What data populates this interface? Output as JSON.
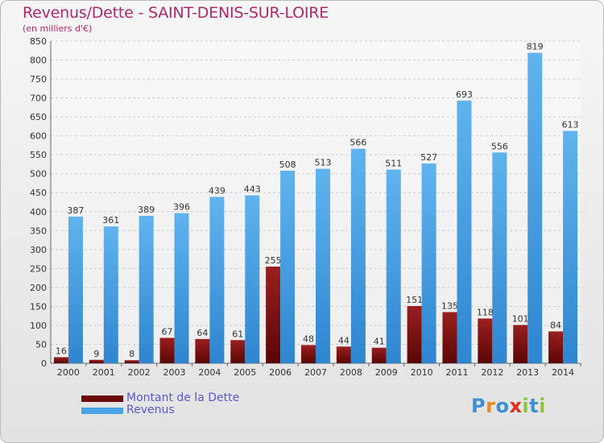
{
  "header": {
    "title": "Revenus/Dette - SAINT-DENIS-SUR-LOIRE",
    "subtitle": "(en milliers d'€)"
  },
  "chart_data": {
    "type": "bar",
    "categories": [
      "2000",
      "2001",
      "2002",
      "2003",
      "2004",
      "2005",
      "2006",
      "2007",
      "2008",
      "2009",
      "2010",
      "2011",
      "2012",
      "2013",
      "2014"
    ],
    "series": [
      {
        "name": "Montant de la Dette",
        "color": "#7a1010",
        "values": [
          16,
          9,
          8,
          67,
          64,
          61,
          255,
          48,
          44,
          41,
          151,
          135,
          118,
          101,
          84
        ]
      },
      {
        "name": "Revenus",
        "color": "#4aa3e6",
        "values": [
          387,
          361,
          389,
          396,
          439,
          443,
          508,
          513,
          566,
          511,
          527,
          693,
          556,
          819,
          613
        ]
      }
    ],
    "ylim": [
      0,
      850
    ],
    "yticks": [
      0,
      50,
      100,
      150,
      200,
      250,
      300,
      350,
      400,
      450,
      500,
      550,
      600,
      650,
      700,
      750,
      800,
      850
    ],
    "grid": true,
    "legend_position": "bottom-left"
  },
  "legend": {
    "items": [
      {
        "label": "Montant de la Dette",
        "color": "#6b0a0a"
      },
      {
        "label": "Revenus",
        "color": "#4aa3e6"
      }
    ]
  },
  "logo": {
    "letters": [
      {
        "ch": "P",
        "color": "#3d8fd6"
      },
      {
        "ch": "r",
        "color": "#f08a1c"
      },
      {
        "ch": "o",
        "color": "#3d8fd6"
      },
      {
        "ch": "x",
        "color": "#e0301e"
      },
      {
        "ch": "i",
        "color": "#8cc63f"
      },
      {
        "ch": "t",
        "color": "#3d8fd6"
      },
      {
        "ch": "i",
        "color": "#8cc63f"
      }
    ]
  }
}
